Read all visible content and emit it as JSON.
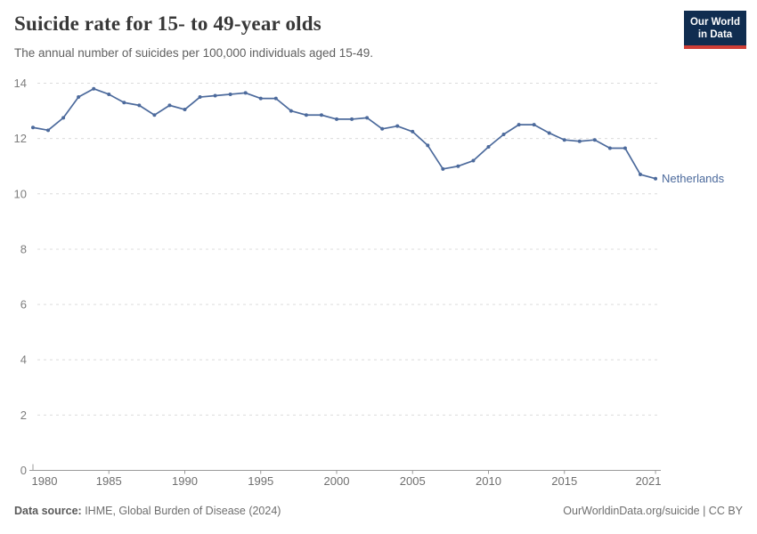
{
  "header": {
    "title": "Suicide rate for 15- to 49-year olds",
    "subtitle": "The annual number of suicides per 100,000 individuals aged 15-49.",
    "logo": {
      "line1": "Our World",
      "line2": "in Data"
    }
  },
  "chart_data": {
    "type": "line",
    "title": "Suicide rate for 15- to 49-year olds",
    "xlabel": "",
    "ylabel": "suicides per 100,000 individuals aged 15-49",
    "xlim": [
      1980,
      2021
    ],
    "ylim": [
      0,
      14
    ],
    "x_ticks": [
      1980,
      1985,
      1990,
      1995,
      2000,
      2005,
      2010,
      2015,
      2021
    ],
    "y_ticks": [
      0,
      2,
      4,
      6,
      8,
      10,
      12,
      14
    ],
    "grid": "horizontal dashed",
    "legend_position": "end-of-line label",
    "series": [
      {
        "name": "Netherlands",
        "x": [
          1980,
          1981,
          1982,
          1983,
          1984,
          1985,
          1986,
          1987,
          1988,
          1989,
          1990,
          1991,
          1992,
          1993,
          1994,
          1995,
          1996,
          1997,
          1998,
          1999,
          2000,
          2001,
          2002,
          2003,
          2004,
          2005,
          2006,
          2007,
          2008,
          2009,
          2010,
          2011,
          2012,
          2013,
          2014,
          2015,
          2016,
          2017,
          2018,
          2019,
          2020,
          2021
        ],
        "values": [
          12.4,
          12.3,
          12.75,
          13.5,
          13.8,
          13.6,
          13.3,
          13.2,
          12.85,
          13.2,
          13.05,
          13.5,
          13.55,
          13.6,
          13.65,
          13.45,
          13.45,
          13.0,
          12.85,
          12.85,
          12.7,
          12.7,
          12.75,
          12.35,
          12.45,
          12.25,
          11.75,
          10.9,
          11.0,
          11.2,
          11.7,
          12.15,
          12.5,
          12.5,
          12.2,
          11.95,
          11.9,
          11.95,
          11.65,
          11.65,
          10.7,
          10.55
        ]
      }
    ]
  },
  "colors": {
    "line": "#4c6a9c",
    "end_label": "#4c6a9c",
    "grid": "#dcdcdc",
    "axis": "#9a9a9a",
    "logo_bg": "#102d50",
    "logo_stripe": "#cf3e36"
  },
  "footer": {
    "source_label": "Data source:",
    "source_value": " IHME, Global Burden of Disease (2024)",
    "attribution": "OurWorldinData.org/suicide | CC BY"
  }
}
